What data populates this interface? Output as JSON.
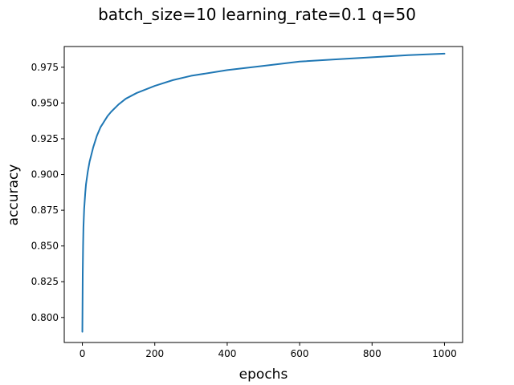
{
  "chart_data": {
    "type": "line",
    "title": "batch_size=10 learning_rate=0.1 q=50",
    "xlabel": "epochs",
    "ylabel": "accuracy",
    "xlim": [
      -50,
      1050
    ],
    "ylim": [
      0.7825,
      0.9895
    ],
    "x_ticks": [
      0,
      200,
      400,
      600,
      800,
      1000
    ],
    "x_tick_labels": [
      "0",
      "200",
      "400",
      "600",
      "800",
      "1000"
    ],
    "y_ticks": [
      0.8,
      0.825,
      0.85,
      0.875,
      0.9,
      0.925,
      0.95,
      0.975
    ],
    "y_tick_labels": [
      "0.800",
      "0.825",
      "0.850",
      "0.875",
      "0.900",
      "0.925",
      "0.950",
      "0.975"
    ],
    "grid": false,
    "colors": {
      "line": "#1f77b4"
    },
    "series": [
      {
        "x": [
          0,
          1,
          2,
          3,
          5,
          8,
          10,
          15,
          20,
          25,
          30,
          40,
          50,
          60,
          70,
          80,
          100,
          120,
          150,
          200,
          250,
          300,
          400,
          500,
          600,
          700,
          800,
          900,
          1000
        ],
        "values": [
          0.79,
          0.83,
          0.85,
          0.863,
          0.876,
          0.887,
          0.893,
          0.902,
          0.909,
          0.914,
          0.919,
          0.927,
          0.933,
          0.937,
          0.941,
          0.944,
          0.949,
          0.953,
          0.957,
          0.962,
          0.966,
          0.969,
          0.973,
          0.976,
          0.979,
          0.9805,
          0.982,
          0.9835,
          0.9845
        ]
      }
    ]
  }
}
